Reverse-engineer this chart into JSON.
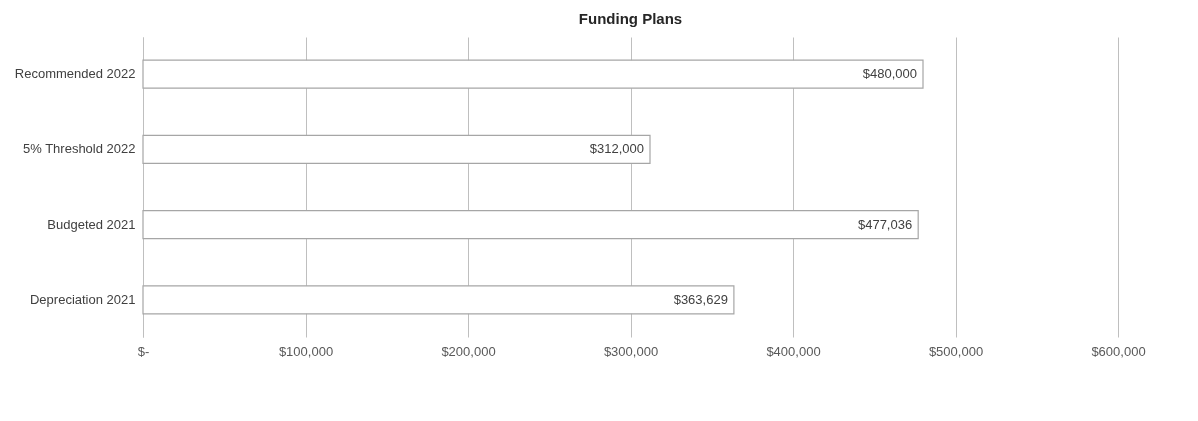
{
  "chart_data": {
    "type": "bar",
    "orientation": "horizontal",
    "title": "Funding Plans",
    "categories": [
      "Recommended 2022",
      "5% Threshold 2022",
      "Budgeted 2021",
      "Depreciation 2021"
    ],
    "values": [
      480000,
      312000,
      477036,
      363629
    ],
    "value_labels": [
      "$480,000",
      "$312,000",
      "$477,036",
      "$363,629"
    ],
    "color": "#ffffff",
    "xlim": [
      0,
      600000
    ],
    "xticks": [
      {
        "value": 0,
        "label": "$-"
      },
      {
        "value": 100000,
        "label": "$100,000"
      },
      {
        "value": 200000,
        "label": "$200,000"
      },
      {
        "value": 300000,
        "label": "$300,000"
      },
      {
        "value": 400000,
        "label": "$400,000"
      },
      {
        "value": 500000,
        "label": "$500,000"
      },
      {
        "value": 600000,
        "label": "$600,000"
      }
    ],
    "grid": "x"
  }
}
